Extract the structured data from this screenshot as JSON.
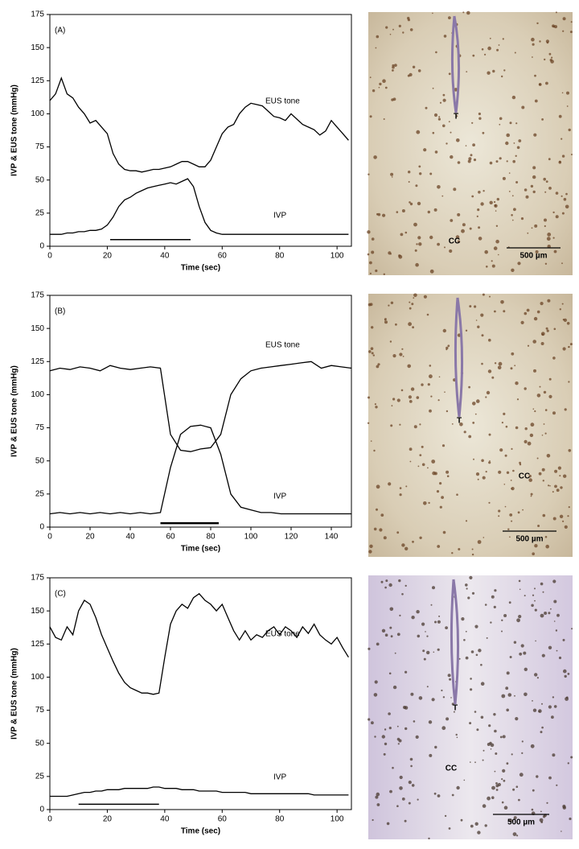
{
  "chart_data": [
    {
      "type": "line",
      "panel_label": "(A)",
      "xlabel": "Time (sec)",
      "ylabel": "IVP & EUS tone (mmHg)",
      "xlim": [
        0,
        105
      ],
      "xticks": [
        0,
        20,
        40,
        60,
        80,
        100
      ],
      "ylim": [
        0,
        175
      ],
      "yticks": [
        0,
        25,
        50,
        75,
        100,
        125,
        150,
        175
      ],
      "x": [
        0,
        2,
        4,
        6,
        8,
        10,
        12,
        14,
        16,
        18,
        20,
        22,
        24,
        26,
        28,
        30,
        32,
        34,
        36,
        38,
        40,
        42,
        44,
        46,
        48,
        50,
        52,
        54,
        56,
        58,
        60,
        62,
        64,
        66,
        68,
        70,
        72,
        74,
        76,
        78,
        80,
        82,
        84,
        86,
        88,
        90,
        92,
        94,
        96,
        98,
        100,
        102,
        104
      ],
      "series": [
        {
          "name": "EUS tone",
          "color": "#000000",
          "values": [
            110,
            115,
            127,
            115,
            112,
            105,
            100,
            93,
            95,
            90,
            85,
            70,
            62,
            58,
            57,
            57,
            56,
            57,
            58,
            58,
            59,
            60,
            62,
            64,
            64,
            62,
            60,
            60,
            65,
            75,
            85,
            90,
            92,
            100,
            105,
            108,
            107,
            106,
            102,
            98,
            97,
            95,
            100,
            96,
            92,
            90,
            88,
            84,
            87,
            95,
            90,
            85,
            80
          ]
        },
        {
          "name": "IVP",
          "color": "#000000",
          "values": [
            9,
            9,
            9,
            10,
            10,
            11,
            11,
            12,
            12,
            13,
            16,
            22,
            30,
            35,
            37,
            40,
            42,
            44,
            45,
            46,
            47,
            48,
            47,
            49,
            51,
            45,
            30,
            18,
            12,
            10,
            9,
            9,
            9,
            9,
            9,
            9,
            9,
            9,
            9,
            9,
            9,
            9,
            9,
            9,
            9,
            9,
            9,
            9,
            9,
            9,
            9,
            9,
            9
          ]
        }
      ],
      "stimulus": {
        "x": [
          21,
          49
        ],
        "y": 5
      }
    },
    {
      "type": "line",
      "panel_label": "(B)",
      "xlabel": "Time (sec)",
      "ylabel": "IVP & EUS tone (mmHg)",
      "xlim": [
        0,
        150
      ],
      "xticks": [
        0,
        20,
        40,
        60,
        80,
        100,
        120,
        140
      ],
      "ylim": [
        0,
        175
      ],
      "yticks": [
        0,
        25,
        50,
        75,
        100,
        125,
        150,
        175
      ],
      "x": [
        0,
        5,
        10,
        15,
        20,
        25,
        30,
        35,
        40,
        45,
        50,
        55,
        60,
        65,
        70,
        75,
        80,
        85,
        90,
        95,
        100,
        105,
        110,
        115,
        120,
        125,
        130,
        135,
        140,
        145,
        150
      ],
      "series": [
        {
          "name": "EUS tone",
          "color": "#000000",
          "values": [
            118,
            120,
            119,
            121,
            120,
            118,
            122,
            120,
            119,
            120,
            121,
            120,
            70,
            58,
            57,
            59,
            60,
            70,
            100,
            112,
            118,
            120,
            121,
            122,
            123,
            124,
            125,
            120,
            122,
            121,
            120
          ]
        },
        {
          "name": "IVP",
          "color": "#000000",
          "values": [
            10,
            11,
            10,
            11,
            10,
            11,
            10,
            11,
            10,
            11,
            10,
            11,
            45,
            70,
            76,
            77,
            75,
            55,
            25,
            15,
            13,
            11,
            11,
            10,
            10,
            10,
            10,
            10,
            10,
            10,
            10
          ]
        }
      ],
      "stimulus": {
        "x": [
          55,
          84
        ],
        "y": 3
      }
    },
    {
      "type": "line",
      "panel_label": "(C)",
      "xlabel": "Time (sec)",
      "ylabel": "IVP & EUS tone (mmHg)",
      "xlim": [
        0,
        105
      ],
      "xticks": [
        0,
        20,
        40,
        60,
        80,
        100
      ],
      "ylim": [
        0,
        175
      ],
      "yticks": [
        0,
        25,
        50,
        75,
        100,
        125,
        150,
        175
      ],
      "x": [
        0,
        2,
        4,
        6,
        8,
        10,
        12,
        14,
        16,
        18,
        20,
        22,
        24,
        26,
        28,
        30,
        32,
        34,
        36,
        38,
        40,
        42,
        44,
        46,
        48,
        50,
        52,
        54,
        56,
        58,
        60,
        62,
        64,
        66,
        68,
        70,
        72,
        74,
        76,
        78,
        80,
        82,
        84,
        86,
        88,
        90,
        92,
        94,
        96,
        98,
        100,
        102,
        104
      ],
      "series": [
        {
          "name": "EUS tone",
          "color": "#000000",
          "values": [
            138,
            130,
            128,
            138,
            132,
            150,
            158,
            155,
            145,
            132,
            122,
            112,
            103,
            96,
            92,
            90,
            88,
            88,
            87,
            88,
            115,
            140,
            150,
            155,
            152,
            160,
            163,
            158,
            155,
            150,
            155,
            145,
            135,
            128,
            135,
            128,
            132,
            130,
            135,
            138,
            132,
            138,
            135,
            130,
            138,
            133,
            140,
            132,
            128,
            125,
            130,
            122,
            115
          ]
        },
        {
          "name": "IVP",
          "color": "#000000",
          "values": [
            10,
            10,
            10,
            10,
            11,
            12,
            13,
            13,
            14,
            14,
            15,
            15,
            15,
            16,
            16,
            16,
            16,
            16,
            17,
            17,
            16,
            16,
            16,
            15,
            15,
            15,
            14,
            14,
            14,
            14,
            13,
            13,
            13,
            13,
            13,
            12,
            12,
            12,
            12,
            12,
            12,
            12,
            12,
            12,
            12,
            12,
            11,
            11,
            11,
            11,
            11,
            11,
            11
          ]
        }
      ],
      "stimulus": {
        "x": [
          10,
          38
        ],
        "y": 4
      }
    }
  ],
  "micrographs": [
    {
      "labels": [
        "T",
        "CC"
      ],
      "scale_bar": "500 µm"
    },
    {
      "labels": [
        "T",
        "CC"
      ],
      "scale_bar": "500 µm"
    },
    {
      "labels": [
        "T",
        "CC"
      ],
      "scale_bar": "500 µm"
    }
  ]
}
